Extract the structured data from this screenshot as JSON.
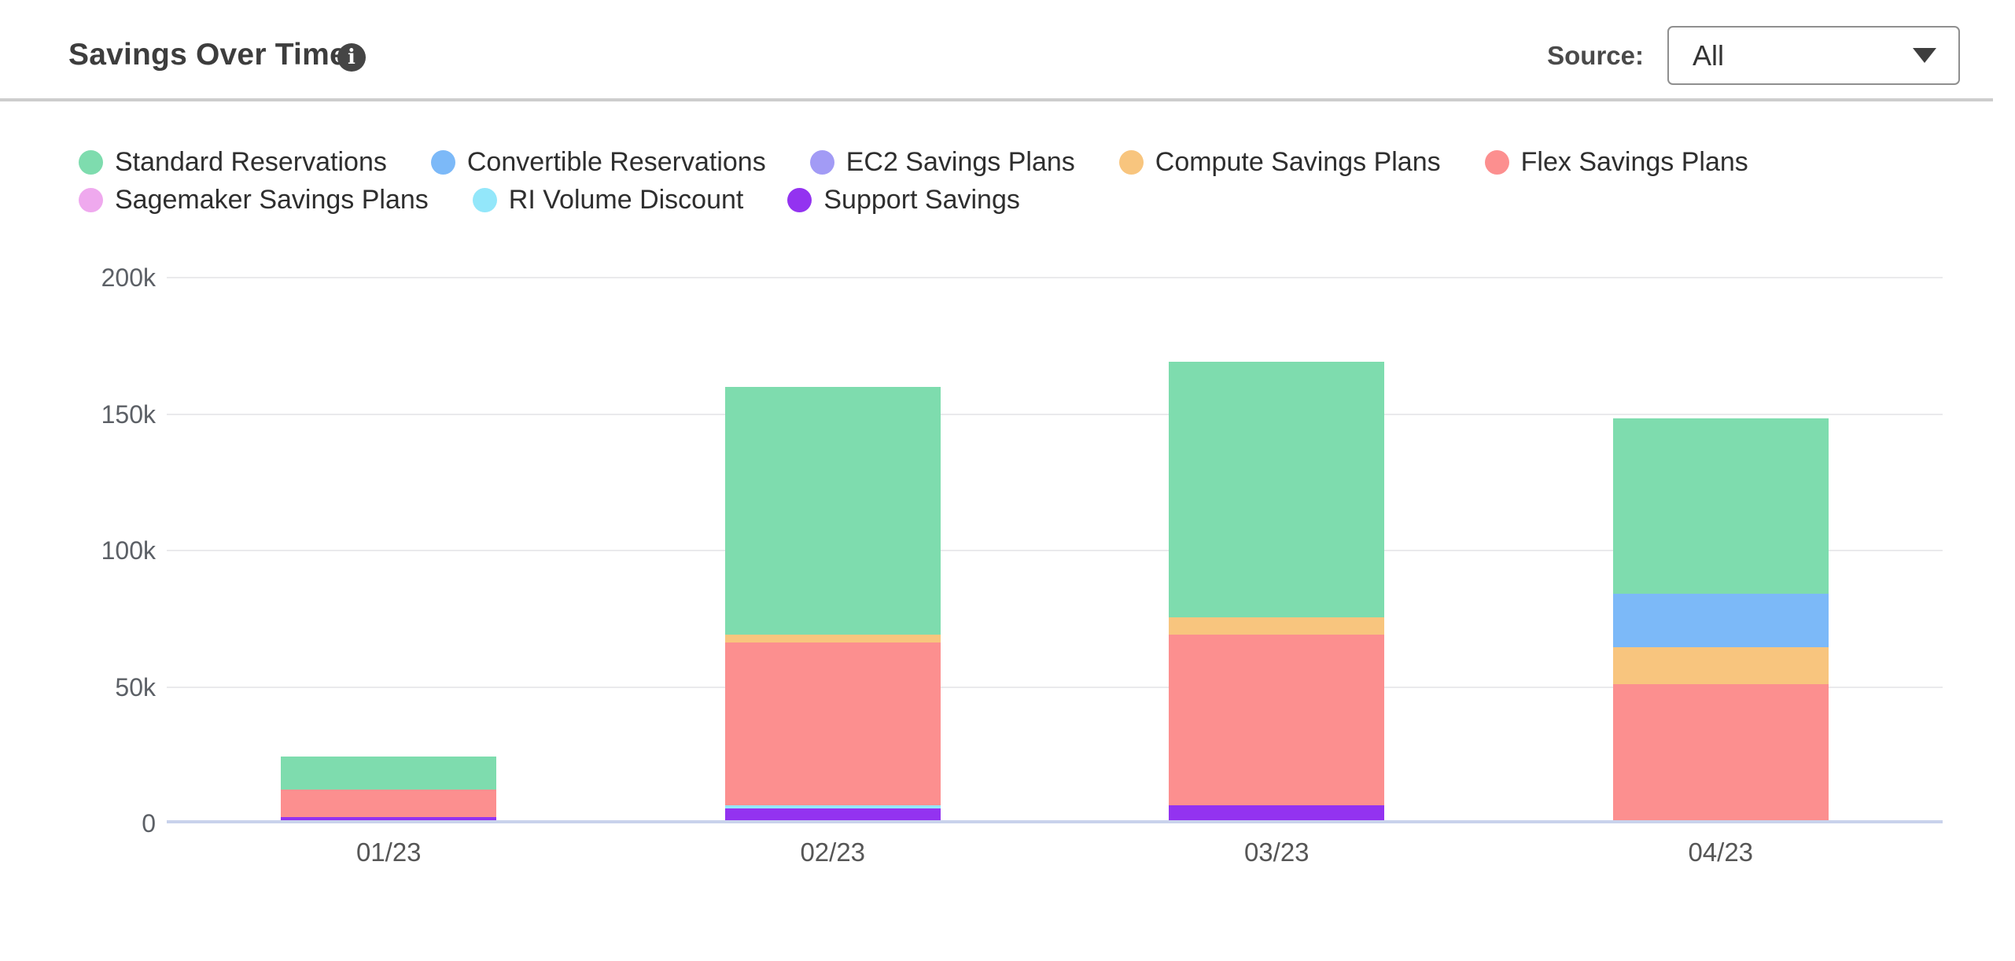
{
  "header": {
    "title": "Savings Over Time",
    "info_icon_glyph": "i",
    "source_label": "Source:",
    "source_value": "All"
  },
  "chart_data": {
    "type": "bar",
    "stacked": true,
    "title": "Savings Over Time",
    "categories": [
      "01/23",
      "02/23",
      "03/23",
      "04/23"
    ],
    "series": [
      {
        "name": "Standard Reservations",
        "color": "#7EDCAE",
        "values": [
          12.2,
          90.8,
          93.5,
          64.4
        ]
      },
      {
        "name": "Convertible Reservations",
        "color": "#7CB9F8",
        "values": [
          0,
          0,
          0,
          19.4
        ]
      },
      {
        "name": "EC2 Savings Plans",
        "color": "#A29BF5",
        "values": [
          0,
          0,
          0,
          0
        ]
      },
      {
        "name": "Compute Savings Plans",
        "color": "#F8C57E",
        "values": [
          0,
          2.9,
          6.6,
          13.6
        ]
      },
      {
        "name": "Flex Savings Plans",
        "color": "#FC8F8F",
        "values": [
          10,
          59.4,
          62.4,
          49.9
        ]
      },
      {
        "name": "Sagemaker Savings Plans",
        "color": "#EFA9EE",
        "values": [
          0,
          0,
          0,
          0
        ]
      },
      {
        "name": "RI Volume Discount",
        "color": "#93E7FA",
        "values": [
          0,
          1.2,
          0,
          0
        ]
      },
      {
        "name": "Support Savings",
        "color": "#9333F0",
        "values": [
          1.2,
          4.4,
          5.5,
          0
        ]
      }
    ],
    "totals": [
      23.4,
      158.7,
      168.0,
      147.3
    ],
    "stack_order_bottom_to_top": [
      "Support Savings",
      "RI Volume Discount",
      "Sagemaker Savings Plans",
      "Flex Savings Plans",
      "Compute Savings Plans",
      "EC2 Savings Plans",
      "Convertible Reservations",
      "Standard Reservations"
    ],
    "y_ticks": [
      {
        "label": "0",
        "value": 0
      },
      {
        "label": "50k",
        "value": 50
      },
      {
        "label": "100k",
        "value": 100
      },
      {
        "label": "150k",
        "value": 150
      },
      {
        "label": "200k",
        "value": 200
      }
    ],
    "ylim": [
      0,
      200
    ],
    "unit": "k",
    "xlabel": "",
    "ylabel": "",
    "grid": true,
    "legend_position": "top",
    "colors": {
      "baseline": "#c9d2ec",
      "gridline": "#eaeaec",
      "divider": "#cdcdcd",
      "info_icon_bg": "#454545"
    }
  }
}
